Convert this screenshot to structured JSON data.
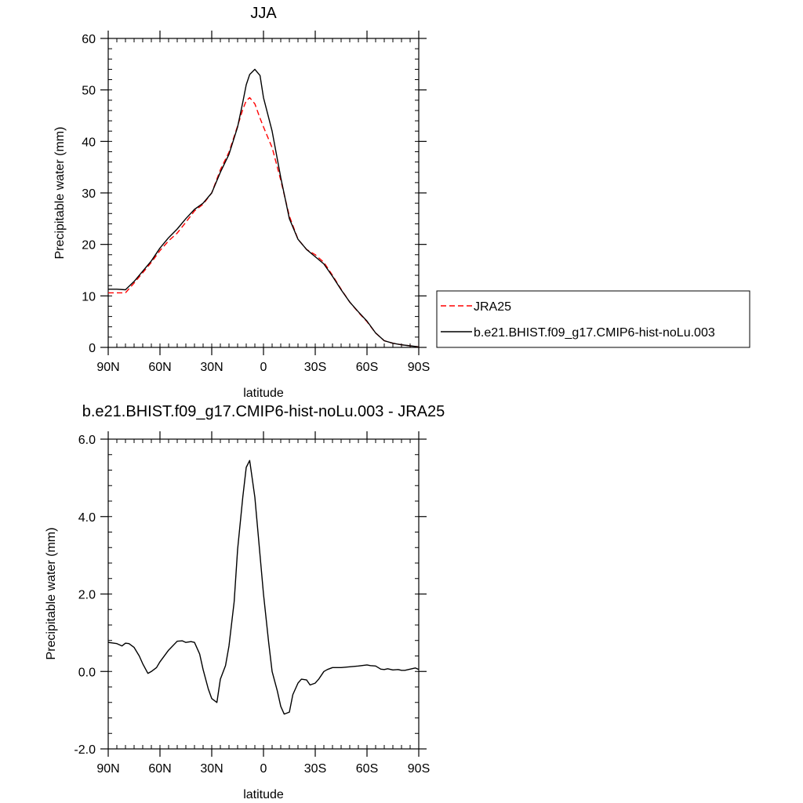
{
  "chart_data": [
    {
      "type": "line",
      "title": "JJA",
      "xlabel": "latitude",
      "ylabel": "Precipitable water (mm)",
      "xlim": [
        90,
        -90
      ],
      "ylim": [
        0,
        60
      ],
      "xticks": [
        {
          "value": 90,
          "label": "90N"
        },
        {
          "value": 60,
          "label": "60N"
        },
        {
          "value": 30,
          "label": "30N"
        },
        {
          "value": 0,
          "label": "0"
        },
        {
          "value": -30,
          "label": "30S"
        },
        {
          "value": -60,
          "label": "60S"
        },
        {
          "value": -90,
          "label": "90S"
        }
      ],
      "yticks": [
        {
          "value": 0,
          "label": "0"
        },
        {
          "value": 10,
          "label": "10"
        },
        {
          "value": 20,
          "label": "20"
        },
        {
          "value": 30,
          "label": "30"
        },
        {
          "value": 40,
          "label": "40"
        },
        {
          "value": 50,
          "label": "50"
        },
        {
          "value": 60,
          "label": "60"
        }
      ],
      "legend_position": "right",
      "series": [
        {
          "name": "JRA25",
          "color": "#ff0000",
          "dash": "dashed",
          "x": [
            90,
            85,
            80,
            75,
            70,
            65,
            60,
            55,
            50,
            45,
            40,
            35,
            30,
            25,
            20,
            15,
            12,
            10,
            8,
            5,
            2,
            0,
            -5,
            -10,
            -15,
            -20,
            -25,
            -30,
            -35,
            -40,
            -45,
            -50,
            -55,
            -60,
            -65,
            -70,
            -75,
            -80,
            -85,
            -90
          ],
          "y": [
            10.6,
            10.6,
            10.6,
            12.5,
            14.5,
            16.5,
            18.8,
            20.7,
            22.2,
            24.3,
            26.5,
            27.8,
            30.0,
            34.5,
            37.9,
            43.0,
            46.2,
            47.9,
            48.5,
            47.3,
            44.5,
            42.8,
            38.8,
            32.5,
            25.5,
            21.0,
            19.0,
            18.0,
            16.5,
            14.0,
            11.3,
            8.8,
            6.8,
            5.0,
            2.8,
            1.3,
            0.8,
            0.5,
            0.3,
            0.1
          ]
        },
        {
          "name": "b.e21.BHIST.f09_g17.CMIP6-hist-noLu.003",
          "color": "#000000",
          "dash": "solid",
          "x": [
            90,
            85,
            80,
            75,
            70,
            65,
            60,
            55,
            50,
            45,
            40,
            35,
            30,
            25,
            20,
            15,
            12,
            10,
            8,
            5,
            2,
            0,
            -5,
            -10,
            -15,
            -20,
            -25,
            -30,
            -35,
            -40,
            -45,
            -50,
            -55,
            -60,
            -65,
            -70,
            -75,
            -80,
            -85,
            -90
          ],
          "y": [
            11.3,
            11.3,
            11.2,
            12.8,
            14.8,
            16.8,
            19.3,
            21.3,
            23.0,
            25.0,
            26.8,
            28.0,
            30.0,
            34.0,
            37.5,
            42.8,
            47.6,
            51.0,
            53.0,
            54.0,
            52.8,
            48.5,
            42.0,
            33.0,
            25.0,
            21.0,
            19.0,
            17.6,
            16.2,
            13.8,
            11.2,
            8.8,
            6.9,
            5.1,
            2.8,
            1.3,
            0.8,
            0.5,
            0.3,
            0.1
          ]
        }
      ]
    },
    {
      "type": "line",
      "title": "b.e21.BHIST.f09_g17.CMIP6-hist-noLu.003 - JRA25",
      "xlabel": "latitude",
      "ylabel": "Precipitable water (mm)",
      "xlim": [
        90,
        -90
      ],
      "ylim": [
        -2,
        6
      ],
      "xticks": [
        {
          "value": 90,
          "label": "90N"
        },
        {
          "value": 60,
          "label": "60N"
        },
        {
          "value": 30,
          "label": "30N"
        },
        {
          "value": 0,
          "label": "0"
        },
        {
          "value": -30,
          "label": "30S"
        },
        {
          "value": -60,
          "label": "60S"
        },
        {
          "value": -90,
          "label": "90S"
        }
      ],
      "yticks": [
        {
          "value": -2,
          "label": "-2.0"
        },
        {
          "value": 0,
          "label": "0.0"
        },
        {
          "value": 2,
          "label": "2.0"
        },
        {
          "value": 4,
          "label": "4.0"
        },
        {
          "value": 6,
          "label": "6.0"
        }
      ],
      "series": [
        {
          "color": "#000000",
          "dash": "solid",
          "x": [
            90,
            85,
            82,
            80,
            78,
            75,
            72,
            70,
            67,
            65,
            62,
            60,
            55,
            50,
            47,
            45,
            42,
            40,
            37,
            35,
            32,
            30,
            27,
            25,
            22,
            20,
            17,
            15,
            12,
            10,
            8,
            5,
            3,
            0,
            -3,
            -5,
            -8,
            -10,
            -12,
            -15,
            -17,
            -20,
            -22,
            -25,
            -27,
            -30,
            -32,
            -35,
            -37,
            -40,
            -45,
            -50,
            -55,
            -60,
            -62,
            -65,
            -68,
            -70,
            -72,
            -75,
            -78,
            -80,
            -82,
            -85,
            -88,
            -90
          ],
          "y": [
            0.75,
            0.72,
            0.66,
            0.73,
            0.72,
            0.62,
            0.4,
            0.2,
            -0.05,
            0.0,
            0.1,
            0.25,
            0.55,
            0.78,
            0.79,
            0.75,
            0.77,
            0.75,
            0.45,
            0.05,
            -0.45,
            -0.7,
            -0.8,
            -0.2,
            0.15,
            0.66,
            1.8,
            3.15,
            4.5,
            5.27,
            5.45,
            4.5,
            3.5,
            2.0,
            0.75,
            0.0,
            -0.5,
            -0.9,
            -1.1,
            -1.05,
            -0.6,
            -0.3,
            -0.2,
            -0.22,
            -0.35,
            -0.3,
            -0.2,
            0.0,
            0.05,
            0.1,
            0.1,
            0.12,
            0.14,
            0.17,
            0.15,
            0.14,
            0.06,
            0.05,
            0.07,
            0.04,
            0.05,
            0.03,
            0.03,
            0.06,
            0.09,
            0.05
          ]
        }
      ]
    }
  ]
}
